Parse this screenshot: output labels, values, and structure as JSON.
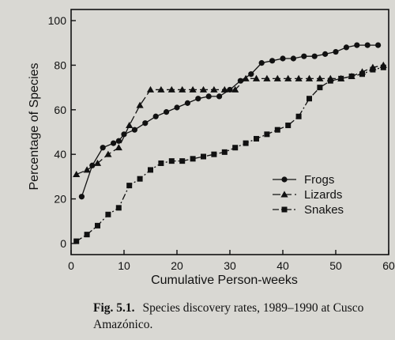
{
  "caption": {
    "label": "Fig. 5.1.",
    "text": "Species discovery rates, 1989–1990 at Cusco Amazónico."
  },
  "chart_data": {
    "type": "line",
    "title": "",
    "xlabel": "Cumulative Person-weeks",
    "ylabel": "Percentage of Species",
    "xlim": [
      0,
      60
    ],
    "ylim": [
      -5,
      105
    ],
    "xticks": [
      0,
      10,
      20,
      30,
      40,
      50,
      60
    ],
    "yticks": [
      0,
      20,
      40,
      60,
      80,
      100
    ],
    "grid": false,
    "legend_position": "lower-right",
    "series": [
      {
        "name": "Frogs",
        "marker": "circle",
        "dash": "solid",
        "x": [
          2,
          4,
          6,
          8,
          9,
          10,
          12,
          14,
          16,
          18,
          20,
          22,
          24,
          26,
          28,
          30,
          32,
          34,
          36,
          38,
          40,
          42,
          44,
          46,
          48,
          50,
          52,
          54,
          56,
          58
        ],
        "y": [
          21,
          35,
          43,
          45,
          46,
          49,
          51,
          54,
          57,
          59,
          61,
          63,
          65,
          66,
          66,
          69,
          73,
          76,
          81,
          82,
          83,
          83,
          84,
          84,
          85,
          86,
          88,
          89,
          89,
          89
        ]
      },
      {
        "name": "Lizards",
        "marker": "triangle",
        "dash": "long-dash",
        "x": [
          1,
          3,
          5,
          7,
          9,
          11,
          13,
          15,
          17,
          19,
          21,
          23,
          25,
          27,
          29,
          31,
          33,
          35,
          37,
          39,
          41,
          43,
          45,
          47,
          49,
          51,
          53,
          55,
          57,
          59
        ],
        "y": [
          31,
          33,
          36,
          40,
          43,
          53,
          62,
          69,
          69,
          69,
          69,
          69,
          69,
          69,
          69,
          69,
          74,
          74,
          74,
          74,
          74,
          74,
          74,
          74,
          74,
          74,
          75,
          77,
          79,
          80
        ]
      },
      {
        "name": "Snakes",
        "marker": "square",
        "dash": "dash-dot",
        "x": [
          1,
          3,
          5,
          7,
          9,
          11,
          13,
          15,
          17,
          19,
          21,
          23,
          25,
          27,
          29,
          31,
          33,
          35,
          37,
          39,
          41,
          43,
          45,
          47,
          49,
          51,
          53,
          55,
          57,
          59
        ],
        "y": [
          1,
          4,
          8,
          13,
          16,
          26,
          29,
          33,
          36,
          37,
          37,
          38,
          39,
          40,
          41,
          43,
          45,
          47,
          49,
          51,
          53,
          57,
          65,
          70,
          73,
          74,
          75,
          76,
          78,
          79
        ]
      }
    ]
  }
}
